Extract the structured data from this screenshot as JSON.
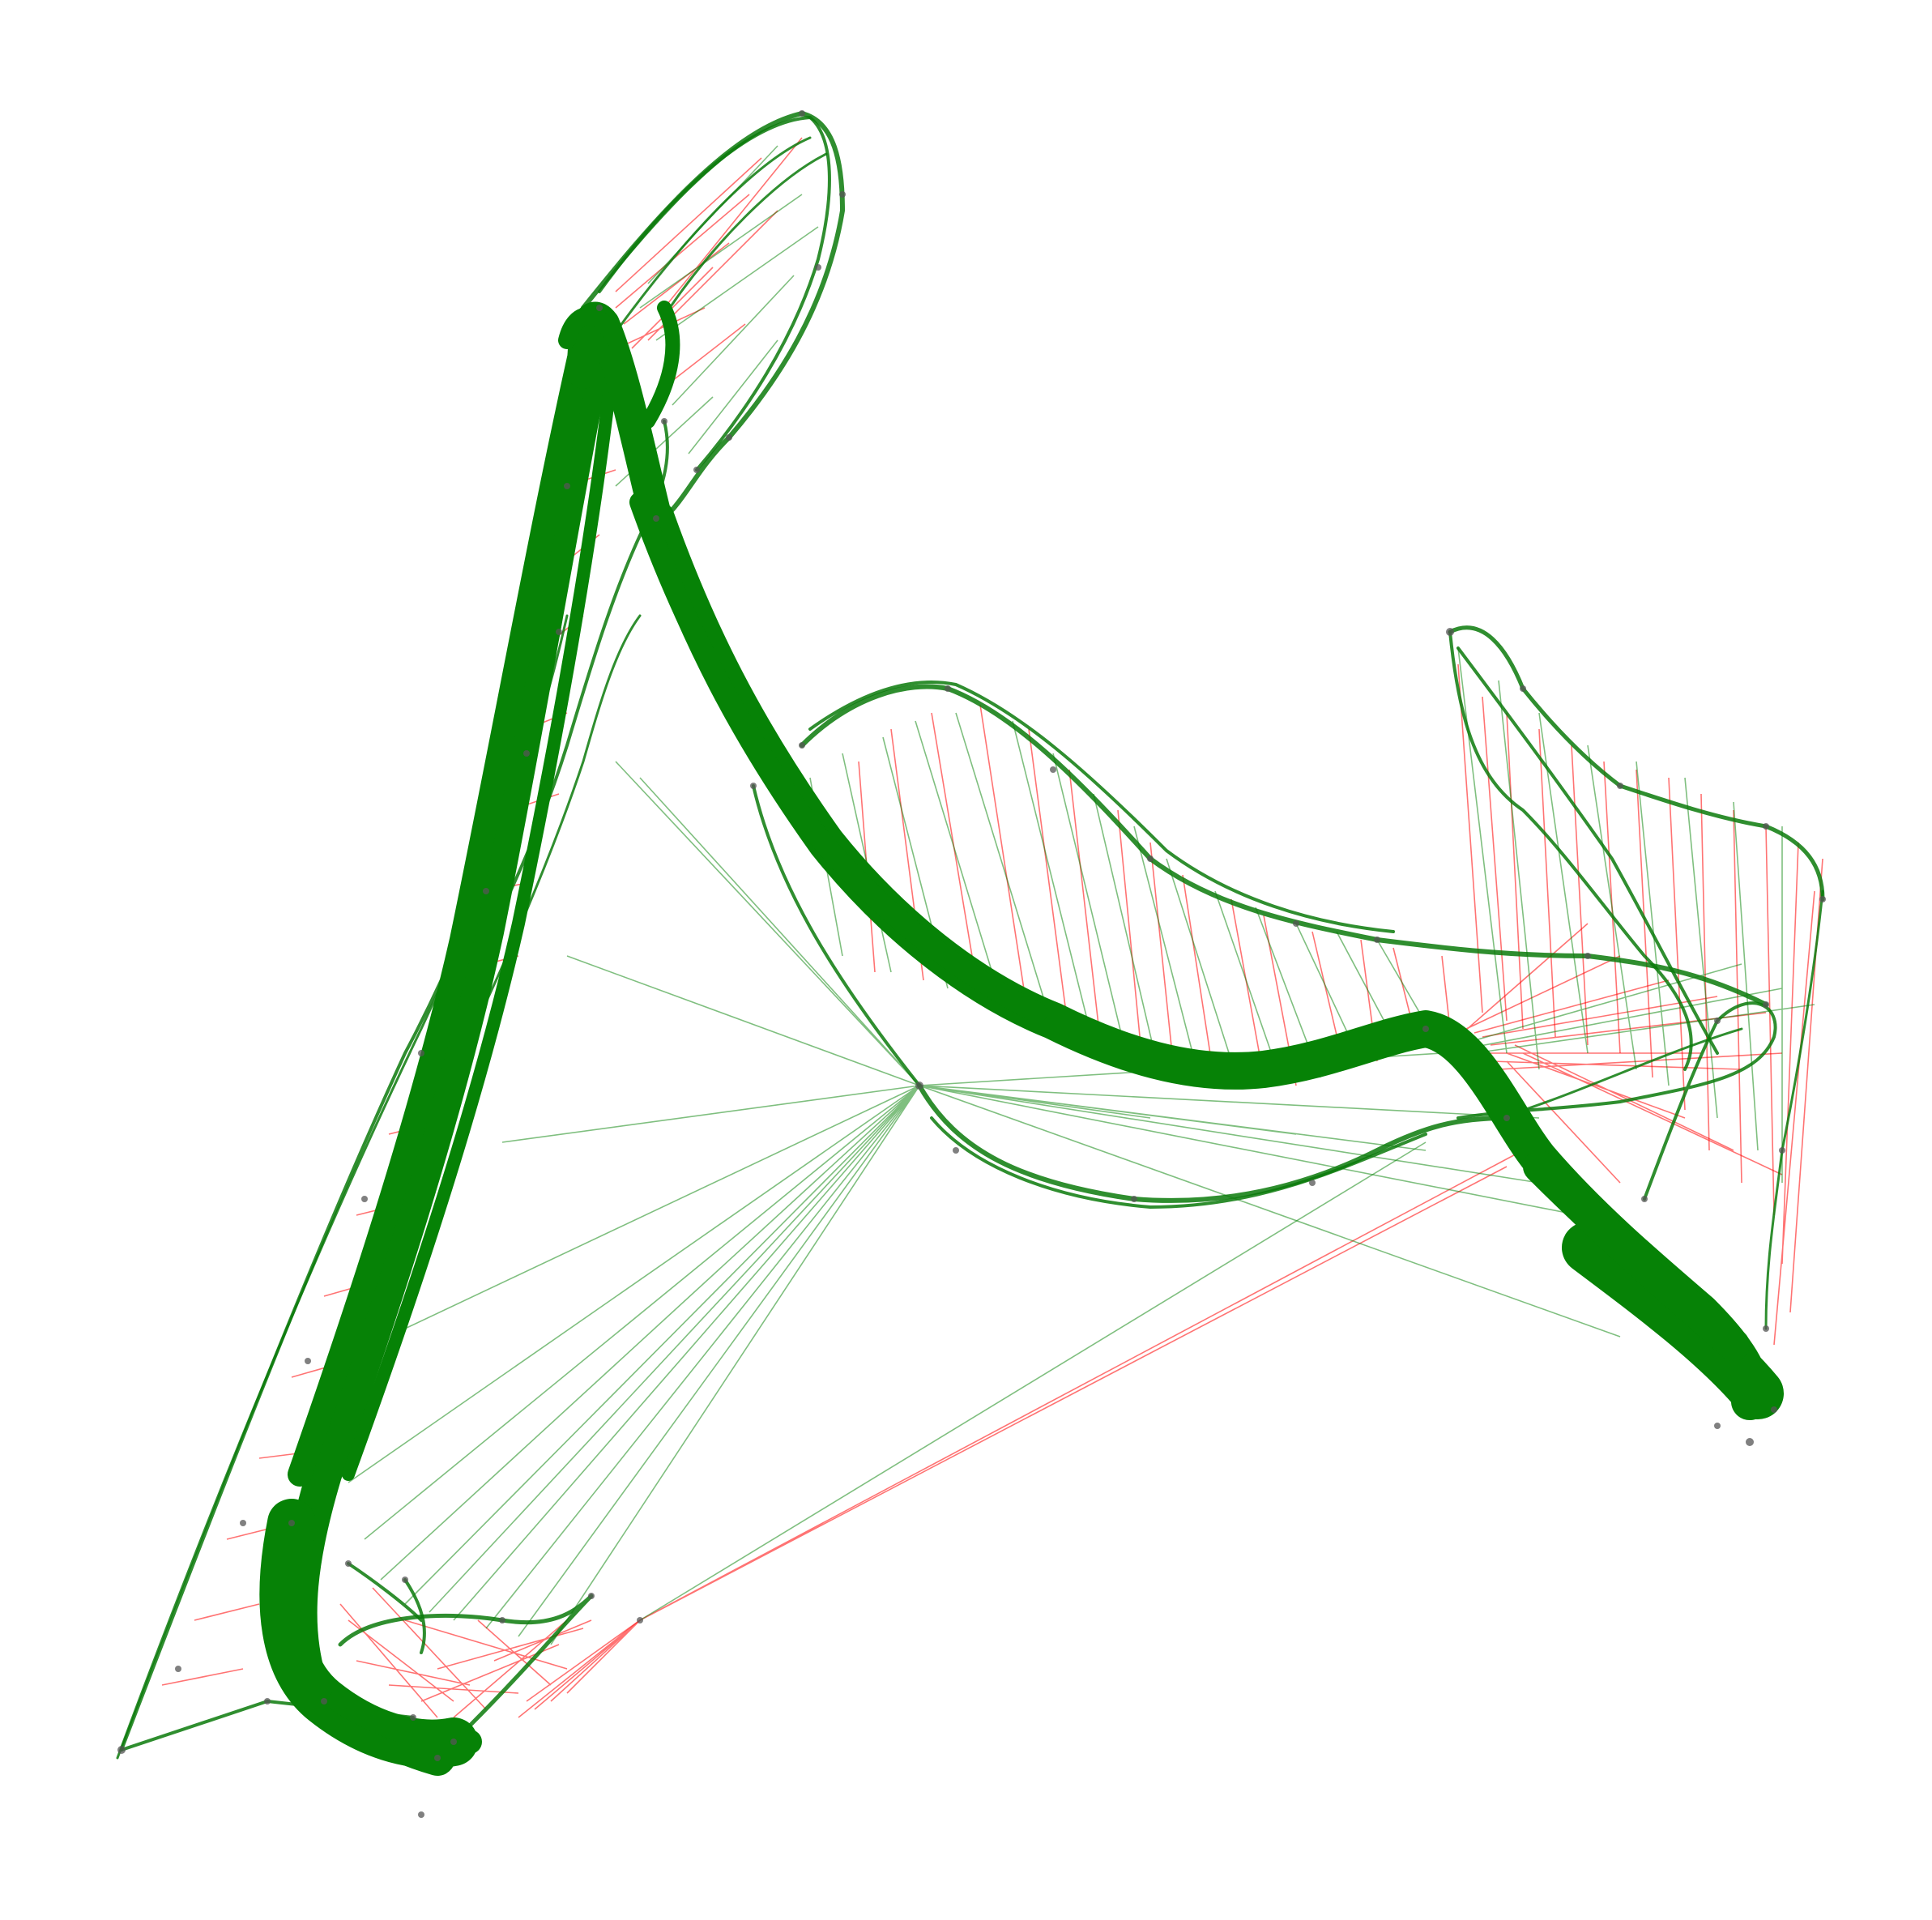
{
  "diagram": {
    "type": "network-graph",
    "labels": [],
    "edge_colors": {
      "positive": "#008000",
      "negative": "#ff0000"
    },
    "node_color": "#555555",
    "background": "#ffffff"
  }
}
